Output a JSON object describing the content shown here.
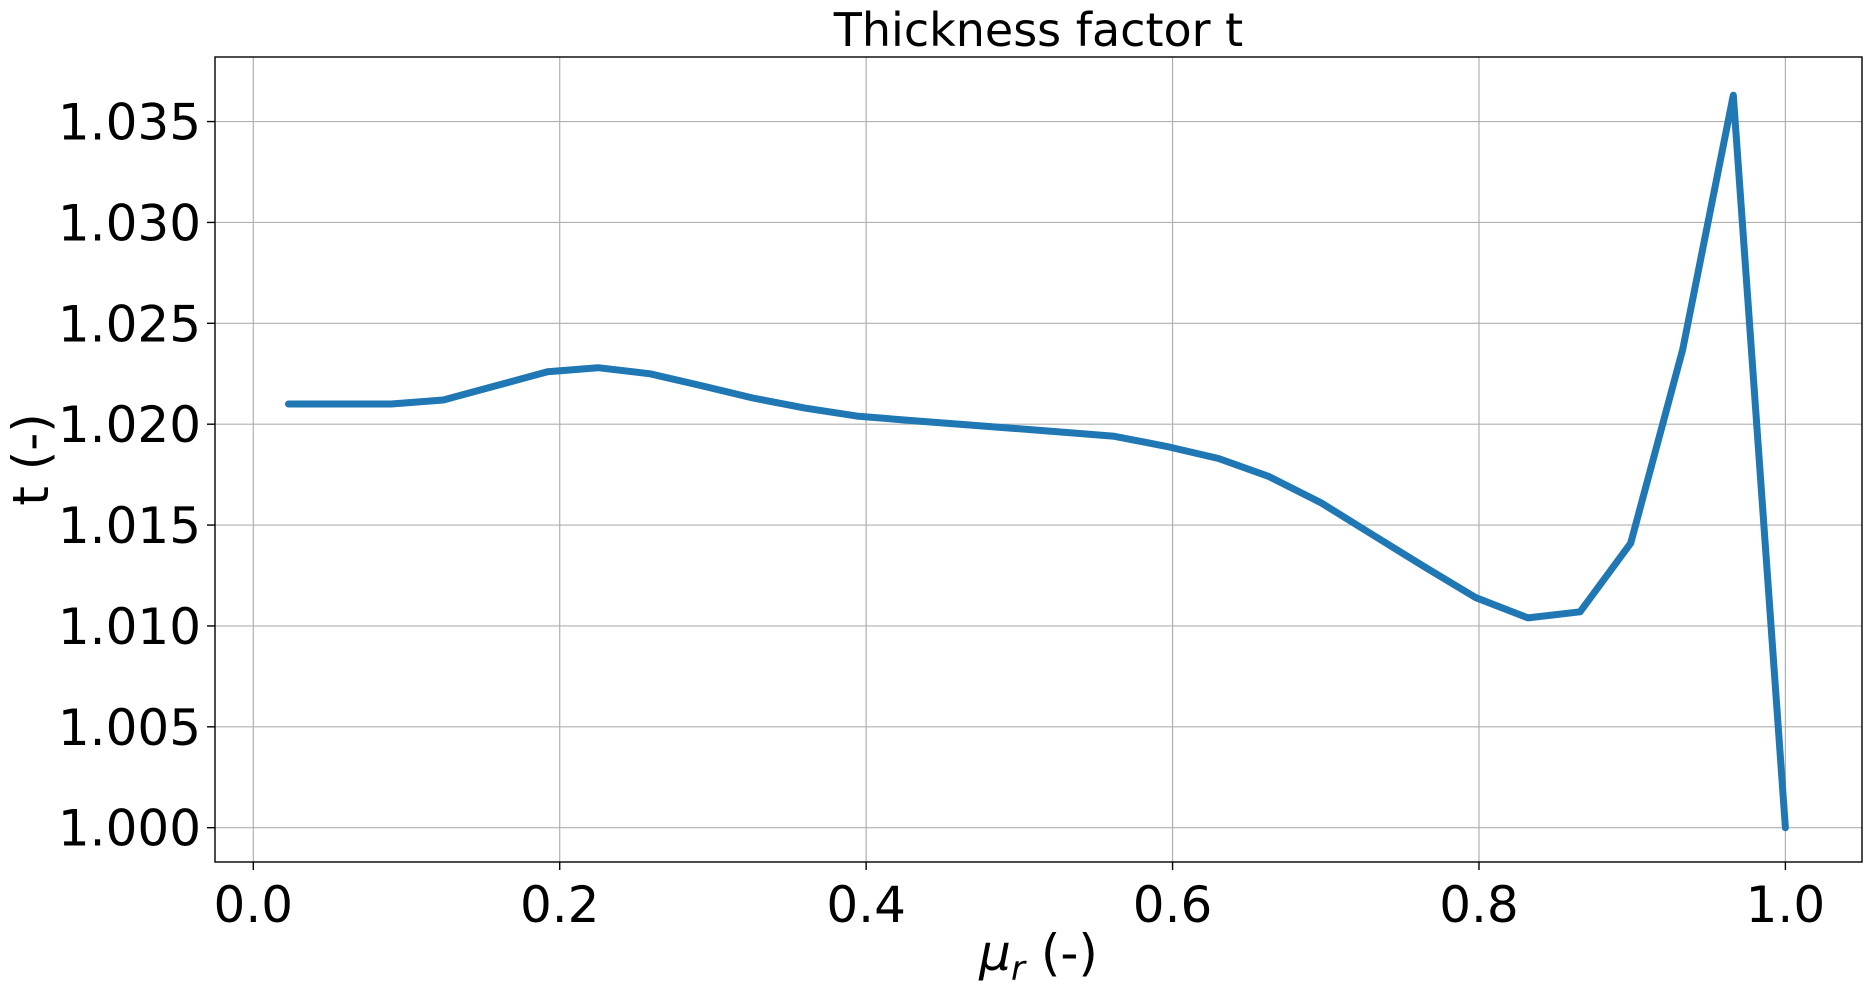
{
  "chart_data": {
    "type": "line",
    "title": "Thickness factor t",
    "xlabel": {
      "base": "μ",
      "sub": "r",
      "suffix": " (-)"
    },
    "ylabel": "t (-)",
    "xlim": [
      -0.025,
      1.05
    ],
    "ylim": [
      0.9983,
      1.0382
    ],
    "xticks": [
      0.0,
      0.2,
      0.4,
      0.6,
      0.8,
      1.0
    ],
    "xtick_labels": [
      "0.0",
      "0.2",
      "0.4",
      "0.6",
      "0.8",
      "1.0"
    ],
    "yticks": [
      1.0,
      1.005,
      1.01,
      1.015,
      1.02,
      1.025,
      1.03,
      1.035
    ],
    "ytick_labels": [
      "1.000",
      "1.005",
      "1.010",
      "1.015",
      "1.020",
      "1.025",
      "1.030",
      "1.035"
    ],
    "grid": true,
    "line_color": "#1f77b4",
    "series": [
      {
        "x": [
          0.023,
          0.057,
          0.09,
          0.124,
          0.158,
          0.192,
          0.225,
          0.259,
          0.293,
          0.326,
          0.36,
          0.394,
          0.427,
          0.461,
          0.495,
          0.529,
          0.562,
          0.596,
          0.63,
          0.663,
          0.697,
          0.731,
          0.765,
          0.798,
          0.832,
          0.866,
          0.899,
          0.933,
          0.966,
          1.0
        ],
        "y": [
          1.021,
          1.021,
          1.021,
          1.0212,
          1.0219,
          1.0226,
          1.0228,
          1.0225,
          1.0219,
          1.0213,
          1.0208,
          1.0204,
          1.0202,
          1.02,
          1.0198,
          1.0196,
          1.0194,
          1.0189,
          1.0183,
          1.0174,
          1.0161,
          1.0145,
          1.0129,
          1.0114,
          1.0104,
          1.0107,
          1.0141,
          1.0237,
          1.0363,
          1.0
        ]
      }
    ]
  }
}
